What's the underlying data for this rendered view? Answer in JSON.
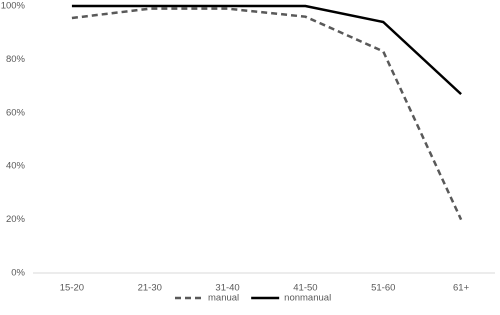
{
  "chart_data": {
    "type": "line",
    "categories": [
      "15-20",
      "21-30",
      "31-40",
      "41-50",
      "51-60",
      "61+"
    ],
    "series": [
      {
        "name": "manual",
        "color": "#595959",
        "dash": "dashed",
        "values": [
          95.5,
          99,
          99,
          96,
          83,
          20
        ]
      },
      {
        "name": "nonmanual",
        "color": "#000000",
        "dash": "solid",
        "values": [
          100,
          100,
          100,
          100,
          94,
          67
        ]
      }
    ],
    "ylim": [
      0,
      100
    ],
    "yticks": [
      {
        "value": 0,
        "label": "0%"
      },
      {
        "value": 20,
        "label": "20%"
      },
      {
        "value": 40,
        "label": "40%"
      },
      {
        "value": 60,
        "label": "60%"
      },
      {
        "value": 80,
        "label": "80%"
      },
      {
        "value": 100,
        "label": "100%"
      }
    ],
    "grid": false,
    "legend": "bottom"
  }
}
